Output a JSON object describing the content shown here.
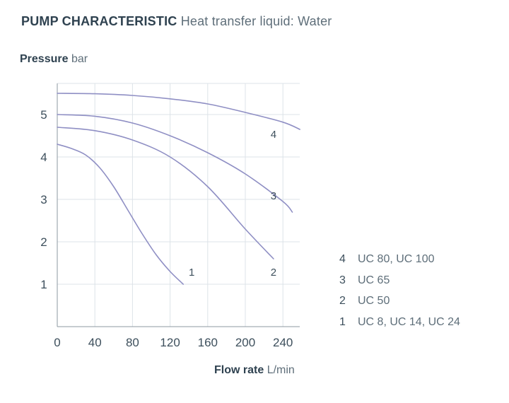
{
  "header": {
    "title_bold": "PUMP CHARACTERISTIC",
    "title_rest": "Heat transfer liquid: Water"
  },
  "colors": {
    "grid": "#dde3e8",
    "axis": "#8d98a2",
    "curve": "#8f8fc4",
    "text": "#3d4f5c"
  },
  "chart_data": {
    "type": "line",
    "title": "PUMP CHARACTERISTIC Heat transfer liquid: Water",
    "ylabel_bold": "Pressure",
    "ylabel_unit": "bar",
    "xlabel_bold": "Flow rate",
    "xlabel_unit": "L/min",
    "xlim": [
      0,
      258
    ],
    "ylim": [
      0,
      5.8
    ],
    "xticks": [
      "0",
      "40",
      "80",
      "120",
      "160",
      "200",
      "240"
    ],
    "yticks": [
      "1",
      "2",
      "3",
      "4",
      "5"
    ],
    "grid": true,
    "series": [
      {
        "name": "1",
        "x": [
          0,
          15,
          30,
          45,
          60,
          75,
          90,
          105,
          120,
          134
        ],
        "y": [
          4.3,
          4.2,
          4.05,
          3.75,
          3.3,
          2.75,
          2.2,
          1.7,
          1.3,
          1.0
        ]
      },
      {
        "name": "2",
        "x": [
          0,
          40,
          80,
          120,
          160,
          200,
          230
        ],
        "y": [
          4.7,
          4.62,
          4.4,
          4.0,
          3.3,
          2.3,
          1.6
        ]
      },
      {
        "name": "3",
        "x": [
          0,
          40,
          80,
          120,
          160,
          200,
          240,
          250
        ],
        "y": [
          5.0,
          4.96,
          4.8,
          4.5,
          4.1,
          3.6,
          2.95,
          2.7
        ]
      },
      {
        "name": "4",
        "x": [
          0,
          40,
          80,
          120,
          160,
          200,
          240,
          258
        ],
        "y": [
          5.5,
          5.49,
          5.45,
          5.37,
          5.25,
          5.05,
          4.82,
          4.65
        ]
      }
    ],
    "curve_labels": [
      {
        "text": "1",
        "x": 143,
        "y": 1.3
      },
      {
        "text": "2",
        "x": 230,
        "y": 1.3
      },
      {
        "text": "3",
        "x": 230,
        "y": 3.1
      },
      {
        "text": "4",
        "x": 230,
        "y": 4.55
      }
    ],
    "legend": [
      {
        "num": "4",
        "label": "UC 80, UC 100"
      },
      {
        "num": "3",
        "label": "UC 65"
      },
      {
        "num": "2",
        "label": "UC 50"
      },
      {
        "num": "1",
        "label": "UC 8, UC 14, UC 24"
      }
    ]
  }
}
